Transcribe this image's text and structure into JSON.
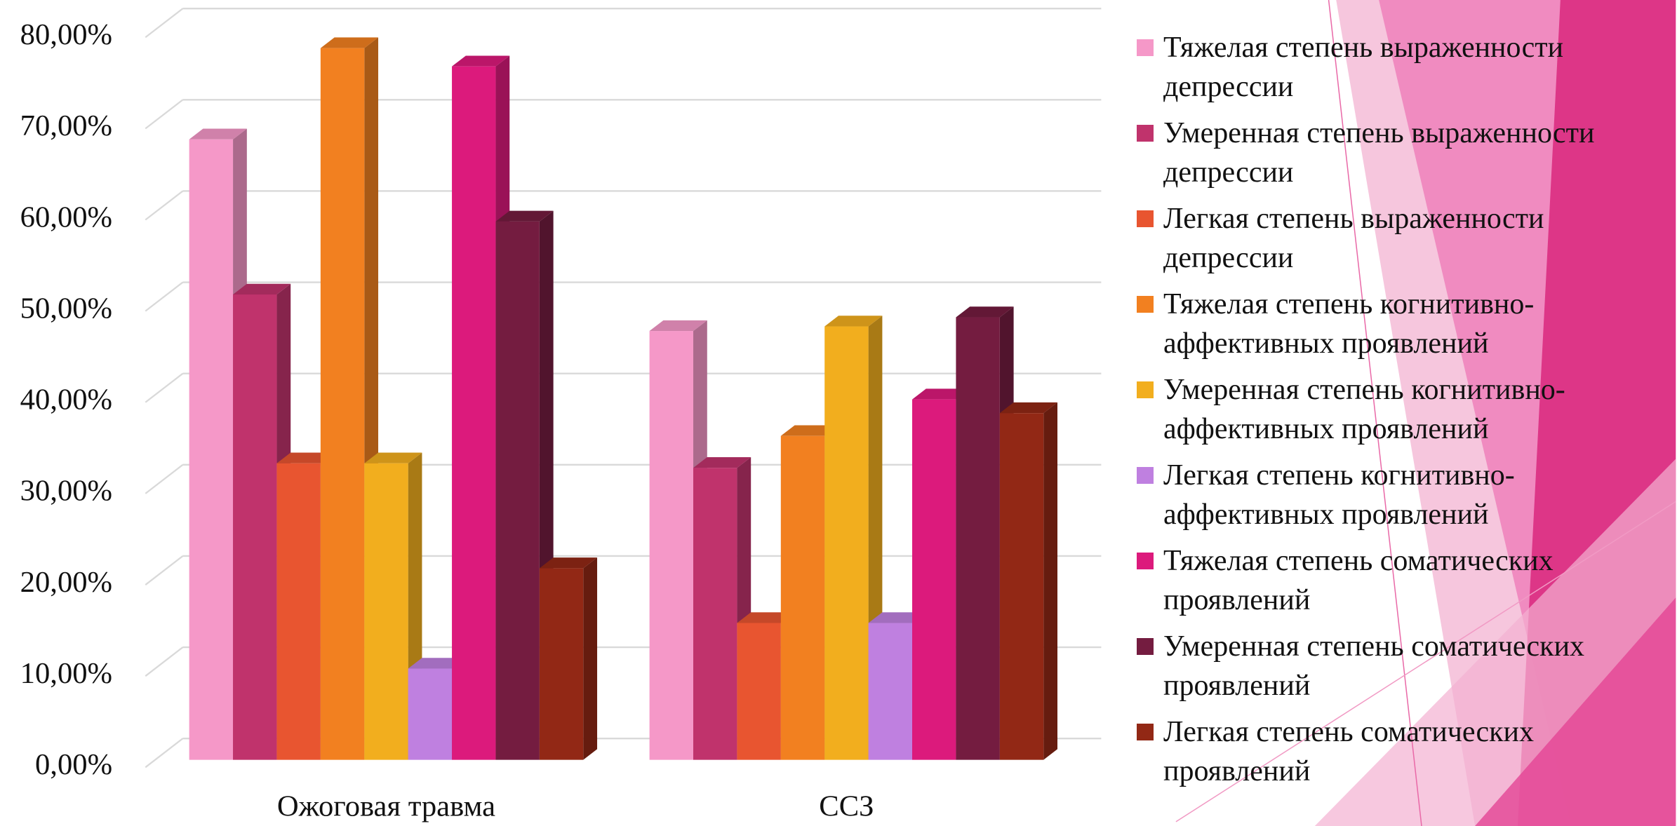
{
  "chart_data": {
    "type": "bar",
    "categories": [
      "Ожоговая травма",
      "ССЗ"
    ],
    "series": [
      {
        "name": "Тяжелая степень выраженности депрессии",
        "color": "#f598c8",
        "values": [
          68,
          47
        ]
      },
      {
        "name": "Умеренная степень выраженности депрессии",
        "color": "#c0336c",
        "values": [
          51,
          32
        ]
      },
      {
        "name": "Легкая степень выраженности депрессии",
        "color": "#e85530",
        "values": [
          32.5,
          15
        ]
      },
      {
        "name": "Тяжелая степень когнитивно-аффективных проявлений",
        "color": "#f28020",
        "values": [
          78,
          35.5
        ]
      },
      {
        "name": "Умеренная степень когнитивно-аффективных проявлений",
        "color": "#f2ae1e",
        "values": [
          32.5,
          47.5
        ]
      },
      {
        "name": "Легкая степень когнитивно-аффективных проявлений",
        "color": "#bf80e0",
        "values": [
          10,
          15
        ]
      },
      {
        "name": "Тяжелая степень соматических проявлений",
        "color": "#dc1a7c",
        "values": [
          76,
          39.5
        ]
      },
      {
        "name": "Умеренная степень соматических проявлений",
        "color": "#741c40",
        "values": [
          59,
          48.5
        ]
      },
      {
        "name": "Легкая степень соматических проявлений",
        "color": "#922815",
        "values": [
          21,
          38
        ]
      }
    ],
    "ylim": [
      0,
      80
    ],
    "yticks": [
      {
        "value": 0,
        "label": "0,00%"
      },
      {
        "value": 10,
        "label": "10,00%"
      },
      {
        "value": 20,
        "label": "20,00%"
      },
      {
        "value": 30,
        "label": "30,00%"
      },
      {
        "value": 40,
        "label": "40,00%"
      },
      {
        "value": 50,
        "label": "50,00%"
      },
      {
        "value": 60,
        "label": "60,00%"
      },
      {
        "value": 70,
        "label": "70,00%"
      },
      {
        "value": 80,
        "label": "80,00%"
      }
    ],
    "grid": true
  }
}
